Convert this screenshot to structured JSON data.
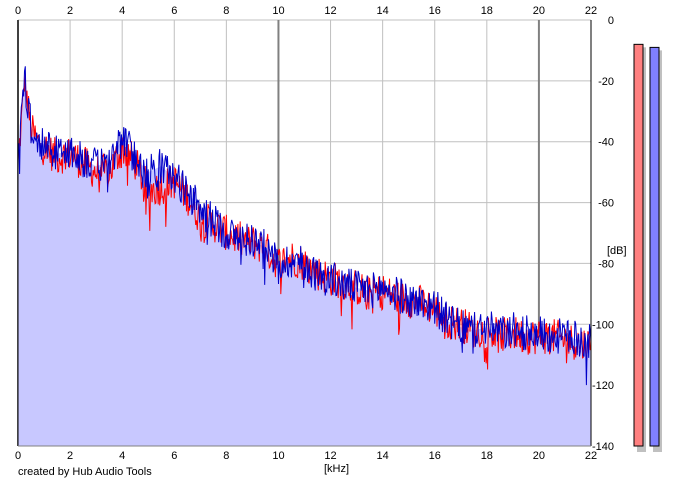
{
  "credit": "created by Hub Audio Tools",
  "colors": {
    "left_channel": "#ff0000",
    "right_channel": "#0000c8",
    "area_fill": "#c8c8ff",
    "left_meter": "#ff8080",
    "right_meter": "#8080ff",
    "grid": "#c0c0c0",
    "grid_major": "#808080"
  },
  "chart_data": {
    "type": "line",
    "title": "",
    "xlabel": "[kHz]",
    "ylabel": "[dB]",
    "xlim": [
      0,
      22
    ],
    "ylim": [
      -140,
      0
    ],
    "x_ticks": [
      "0",
      "2",
      "4",
      "6",
      "8",
      "10",
      "12",
      "14",
      "16",
      "18",
      "20",
      "22"
    ],
    "y_ticks": [
      "0",
      "-20",
      "-40",
      "-60",
      "-80",
      "-100",
      "-120",
      "-140"
    ],
    "grid": true,
    "x": [
      0,
      0.25,
      0.5,
      0.75,
      1,
      1.5,
      2,
      2.5,
      3,
      3.5,
      4,
      4.5,
      5,
      5.5,
      6,
      6.5,
      7,
      7.5,
      8,
      8.5,
      9,
      9.5,
      10,
      10.5,
      11,
      11.5,
      12,
      12.5,
      13,
      13.5,
      14,
      14.5,
      15,
      15.5,
      16,
      16.5,
      17,
      17.5,
      18,
      18.5,
      19,
      19.5,
      20,
      20.5,
      21,
      21.5,
      22
    ],
    "series": [
      {
        "values": [
          -48,
          -20,
          -36,
          -40,
          -42,
          -45,
          -44,
          -47,
          -50,
          -50,
          -42,
          -47,
          -56,
          -55,
          -53,
          -58,
          -65,
          -67,
          -70,
          -72,
          -73,
          -75,
          -80,
          -78,
          -80,
          -83,
          -85,
          -86,
          -88,
          -90,
          -89,
          -91,
          -92,
          -93,
          -95,
          -99,
          -100,
          -102,
          -102,
          -104,
          -103,
          -104,
          -104,
          -104,
          -105,
          -106,
          -107
        ]
      },
      {
        "values": [
          -47,
          -19,
          -35,
          -38,
          -41,
          -44,
          -43,
          -46,
          -48,
          -47,
          -39,
          -45,
          -50,
          -48,
          -52,
          -56,
          -63,
          -66,
          -70,
          -72,
          -72,
          -75,
          -80,
          -79,
          -80,
          -84,
          -85,
          -87,
          -88,
          -89,
          -88,
          -90,
          -92,
          -93,
          -94,
          -99,
          -101,
          -102,
          -101,
          -103,
          -102,
          -103,
          -103,
          -104,
          -104,
          -105,
          -106
        ]
      }
    ],
    "meters": [
      {
        "value_db": -8
      },
      {
        "value_db": -9
      }
    ]
  }
}
